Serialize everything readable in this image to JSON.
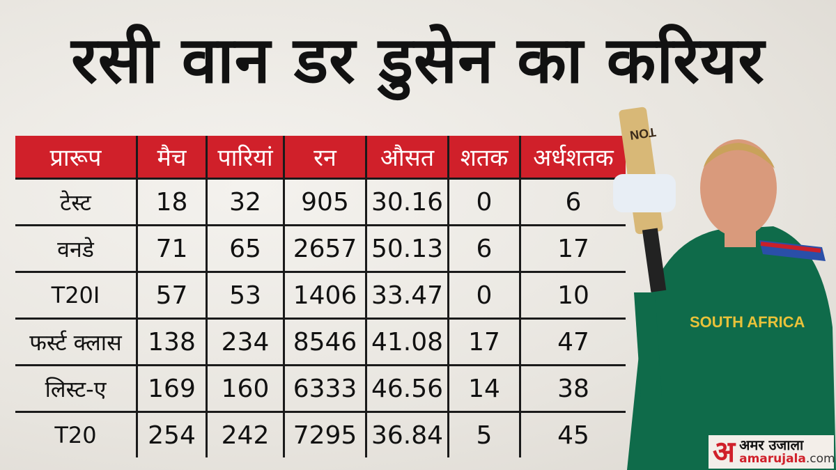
{
  "title": "रसी वान डर डुसेन का करियर",
  "table": {
    "headers": [
      "प्रारूप",
      "मैच",
      "पारियां",
      "रन",
      "औसत",
      "शतक",
      "अर्धशतक"
    ],
    "rows": [
      [
        "टेस्ट",
        "18",
        "32",
        "905",
        "30.16",
        "0",
        "6"
      ],
      [
        "वनडे",
        "71",
        "65",
        "2657",
        "50.13",
        "6",
        "17"
      ],
      [
        "T20I",
        "57",
        "53",
        "1406",
        "33.47",
        "0",
        "10"
      ],
      [
        "फर्स्ट क्लास",
        "138",
        "234",
        "8546",
        "41.08",
        "17",
        "47"
      ],
      [
        "लिस्ट-ए",
        "169",
        "160",
        "6333",
        "46.56",
        "14",
        "38"
      ],
      [
        "T20",
        "254",
        "242",
        "7295",
        "36.84",
        "5",
        "45"
      ]
    ]
  },
  "player": {
    "jersey_text": "SOUTH AFRICA",
    "bat_text": "TON"
  },
  "logo": {
    "mark": "अ",
    "hindi": "अमर उजाला",
    "domain": "amarujala",
    "tld": ".com"
  },
  "colors": {
    "header": "#d0202a",
    "jersey": "#0f6b4a",
    "text": "#111111"
  }
}
